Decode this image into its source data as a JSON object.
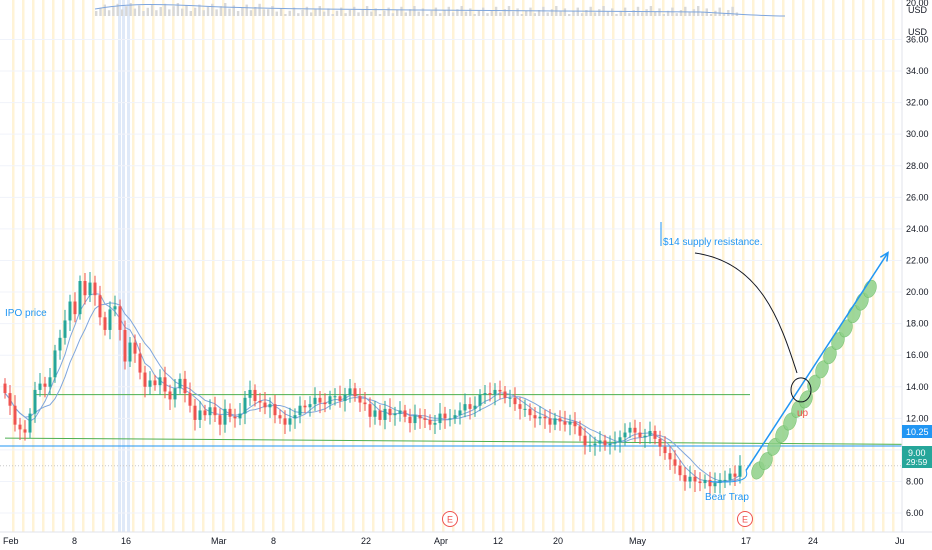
{
  "currency_labels": [
    "USD",
    "USD"
  ],
  "current_price": "9.00",
  "countdown": "29:59",
  "resistance_price": "10.25",
  "top_axis_stub": "20.00",
  "colors": {
    "up": "#26a69a",
    "down": "#ef5350",
    "ma": "#7fa6dd",
    "session_stripe": "#fff3d6",
    "highlight_stripe": "#dfe9f8",
    "annotation": "#2196f3",
    "resistance_line": "#2196f3",
    "support_line": "#4caf50",
    "projection_fill": "#8fd18a",
    "projection_stroke": "#6bbd66",
    "current_tag": "#26a69a",
    "tag_bg": "#2962ff"
  },
  "annotations": {
    "ipo_price": "IPO price",
    "supply_resistance": "$14 supply resistance.",
    "bear_trap": "Bear Trap",
    "earnings_marker": "E",
    "up_marker": "up"
  },
  "chart_data": {
    "type": "candlestick",
    "ylim": [
      4.8,
      38.5
    ],
    "y_ticks": [
      6,
      8,
      10,
      12,
      14,
      16,
      18,
      20,
      22,
      24,
      26,
      28,
      30,
      32,
      34,
      36
    ],
    "y_tick_labels": [
      "6.00",
      "8.00",
      "10.00",
      "12.00",
      "14.00",
      "16.00",
      "18.00",
      "20.00",
      "22.00",
      "24.00",
      "26.00",
      "28.00",
      "30.00",
      "32.00",
      "34.00",
      "36.00"
    ],
    "x_tick_labels": [
      "Feb",
      "8",
      "16",
      "Mar",
      "8",
      "22",
      "Apr",
      "12",
      "20",
      "May",
      "17",
      "24",
      "Ju"
    ],
    "earnings_dates": [
      "Mar 22",
      "May 17"
    ],
    "horizontal_levels": [
      {
        "name": "resistance",
        "value": 10.25
      },
      {
        "name": "support",
        "value": 13.5
      }
    ],
    "support_trendline": {
      "from": [
        0,
        10.75
      ],
      "to": [
        204,
        10.3
      ]
    },
    "closes": [
      13.6,
      12.8,
      11.6,
      11.3,
      11.1,
      12.3,
      13.8,
      14.2,
      14.0,
      14.6,
      16.3,
      17.1,
      18.2,
      19.4,
      18.6,
      20.7,
      19.8,
      20.6,
      19.8,
      18.4,
      17.6,
      18.9,
      19.1,
      17.6,
      15.6,
      16.8,
      16.1,
      14.9,
      14.0,
      14.4,
      14.1,
      14.6,
      13.7,
      13.2,
      13.9,
      14.5,
      13.6,
      12.8,
      11.9,
      12.5,
      12.2,
      12.7,
      12.2,
      11.6,
      12.6,
      12.1,
      12.0,
      12.3,
      13.3,
      13.8,
      13.1,
      13.0,
      12.7,
      12.9,
      12.2,
      12.0,
      11.6,
      12.0,
      12.2,
      12.8,
      12.7,
      12.9,
      13.3,
      13.0,
      12.9,
      13.4,
      13.4,
      13.1,
      13.5,
      13.9,
      13.4,
      13.0,
      12.9,
      12.1,
      12.5,
      11.9,
      12.6,
      12.2,
      12.3,
      12.5,
      12.1,
      11.7,
      12.2,
      12.0,
      11.9,
      11.6,
      11.7,
      12.3,
      12.0,
      12.0,
      12.2,
      12.5,
      12.9,
      12.6,
      12.8,
      13.5,
      13.6,
      13.5,
      13.8,
      13.7,
      13.3,
      13.3,
      12.9,
      12.6,
      12.6,
      12.2,
      12.0,
      12.1,
      12.0,
      11.6,
      12.0,
      11.8,
      11.6,
      11.8,
      11.5,
      10.9,
      10.3,
      10.3,
      10.4,
      10.6,
      10.3,
      10.4,
      10.5,
      10.8,
      11.1,
      11.4,
      11.1,
      10.8,
      10.9,
      11.2,
      10.7,
      10.2,
      9.8,
      9.4,
      9.0,
      8.4,
      8.0,
      8.3,
      8.0,
      7.9,
      8.1,
      7.7,
      7.9,
      8.1,
      8.1,
      8.5,
      8.3,
      9.0
    ],
    "projection": {
      "label": "up",
      "points": [
        [
          0,
          8.7
        ],
        [
          4,
          9.3
        ],
        [
          8,
          10.2
        ],
        [
          12,
          11.0
        ],
        [
          16,
          11.8
        ],
        [
          20,
          12.6
        ],
        [
          24,
          13.2
        ],
        [
          28,
          14.2
        ],
        [
          32,
          15.1
        ],
        [
          36,
          16.0
        ],
        [
          40,
          16.9
        ],
        [
          44,
          17.7
        ],
        [
          48,
          18.6
        ],
        [
          52,
          19.4
        ],
        [
          56,
          20.2
        ]
      ],
      "arrow_to": [
        70,
        22.5
      ],
      "circle_level": 13.8
    }
  }
}
